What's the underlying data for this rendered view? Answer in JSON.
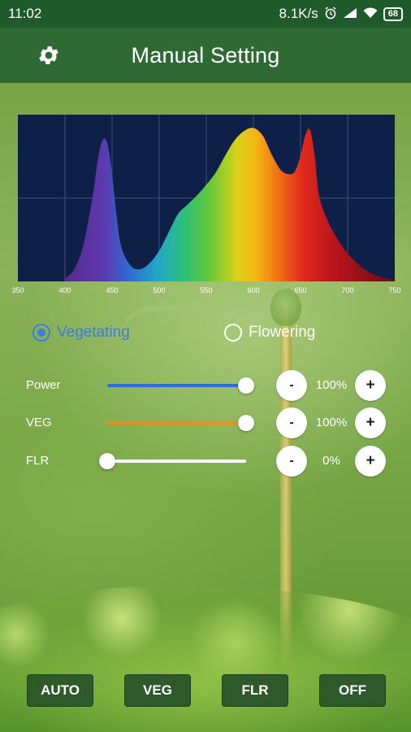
{
  "status_bar": {
    "time": "11:02",
    "network_speed": "8.1K/s",
    "battery": "68",
    "icons": [
      "alarm-icon",
      "signal-icon",
      "wifi-icon",
      "battery-icon"
    ]
  },
  "app_bar": {
    "title": "Manual Setting",
    "icon": "gear-icon"
  },
  "chart_data": {
    "type": "area",
    "title": "",
    "xlabel": "",
    "ylabel": "",
    "x_ticks": [
      "350",
      "400",
      "450",
      "500",
      "550",
      "600",
      "650",
      "700",
      "750"
    ],
    "xlim": [
      350,
      750
    ],
    "ylim": [
      0,
      1
    ],
    "grid": true,
    "background": "#0f2048",
    "series": [
      {
        "x": [
          400,
          410,
          420,
          430,
          435,
          440,
          445,
          450,
          455,
          460,
          470,
          480,
          490,
          500,
          510,
          520,
          530,
          540,
          550,
          560,
          570,
          580,
          590,
          600,
          610,
          620,
          630,
          640,
          645,
          650,
          655,
          660,
          665,
          670,
          680,
          690,
          700,
          710,
          720,
          730,
          740,
          750
        ],
        "y": [
          0.02,
          0.08,
          0.25,
          0.58,
          0.8,
          0.92,
          0.9,
          0.7,
          0.42,
          0.22,
          0.1,
          0.08,
          0.12,
          0.2,
          0.32,
          0.44,
          0.5,
          0.56,
          0.63,
          0.71,
          0.82,
          0.92,
          0.98,
          1.0,
          0.95,
          0.82,
          0.72,
          0.7,
          0.73,
          0.82,
          0.95,
          0.99,
          0.82,
          0.55,
          0.38,
          0.27,
          0.18,
          0.12,
          0.07,
          0.04,
          0.02,
          0.01
        ]
      }
    ]
  },
  "mode": {
    "options": [
      {
        "label": "Vegetating",
        "checked": true
      },
      {
        "label": "Flowering",
        "checked": false
      }
    ]
  },
  "sliders": [
    {
      "label": "Power",
      "value": 100,
      "display": "100%",
      "color": "#2d6fd6",
      "minus": "-",
      "plus": "+"
    },
    {
      "label": "VEG",
      "value": 100,
      "display": "100%",
      "color": "#f08c1e",
      "minus": "-",
      "plus": "+"
    },
    {
      "label": "FLR",
      "value": 0,
      "display": "0%",
      "color": "#ffffff",
      "minus": "-",
      "plus": "+"
    }
  ],
  "bottom_buttons": [
    "AUTO",
    "VEG",
    "FLR",
    "OFF"
  ]
}
